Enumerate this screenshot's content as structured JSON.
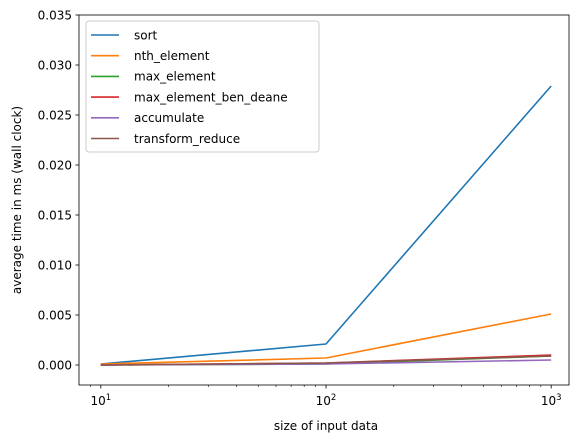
{
  "chart_data": {
    "type": "line",
    "title": "",
    "xlabel": "size of input data",
    "ylabel": "average time in ms (wall clock)",
    "xscale": "log",
    "xlim": [
      8,
      1200
    ],
    "ylim": [
      -0.002,
      0.035
    ],
    "x_ticks": [
      {
        "value": 10,
        "base": "10",
        "exp": "1"
      },
      {
        "value": 100,
        "base": "10",
        "exp": "2"
      },
      {
        "value": 1000,
        "base": "10",
        "exp": "3"
      }
    ],
    "y_ticks": [
      {
        "value": 0.0,
        "label": "0.000"
      },
      {
        "value": 0.005,
        "label": "0.005"
      },
      {
        "value": 0.01,
        "label": "0.010"
      },
      {
        "value": 0.015,
        "label": "0.015"
      },
      {
        "value": 0.02,
        "label": "0.020"
      },
      {
        "value": 0.025,
        "label": "0.025"
      },
      {
        "value": 0.03,
        "label": "0.030"
      },
      {
        "value": 0.035,
        "label": "0.035"
      }
    ],
    "grid": false,
    "legend_position": "top-left",
    "x": [
      10,
      100,
      1000
    ],
    "series": [
      {
        "name": "sort",
        "color": "#1f77b4",
        "values": [
          0.0001,
          0.0021,
          0.0279
        ]
      },
      {
        "name": "nth_element",
        "color": "#ff7f0e",
        "values": [
          0.0001,
          0.0007,
          0.0051
        ]
      },
      {
        "name": "max_element",
        "color": "#2ca02c",
        "values": [
          0.0,
          0.0001,
          0.0009
        ]
      },
      {
        "name": "max_element_ben_deane",
        "color": "#d62728",
        "values": [
          0.0,
          0.0002,
          0.001
        ]
      },
      {
        "name": "accumulate",
        "color": "#9467bd",
        "values": [
          0.0,
          0.0001,
          0.0005
        ]
      },
      {
        "name": "transform_reduce",
        "color": "#8c564b",
        "values": [
          0.0,
          0.0002,
          0.0009
        ]
      }
    ]
  }
}
